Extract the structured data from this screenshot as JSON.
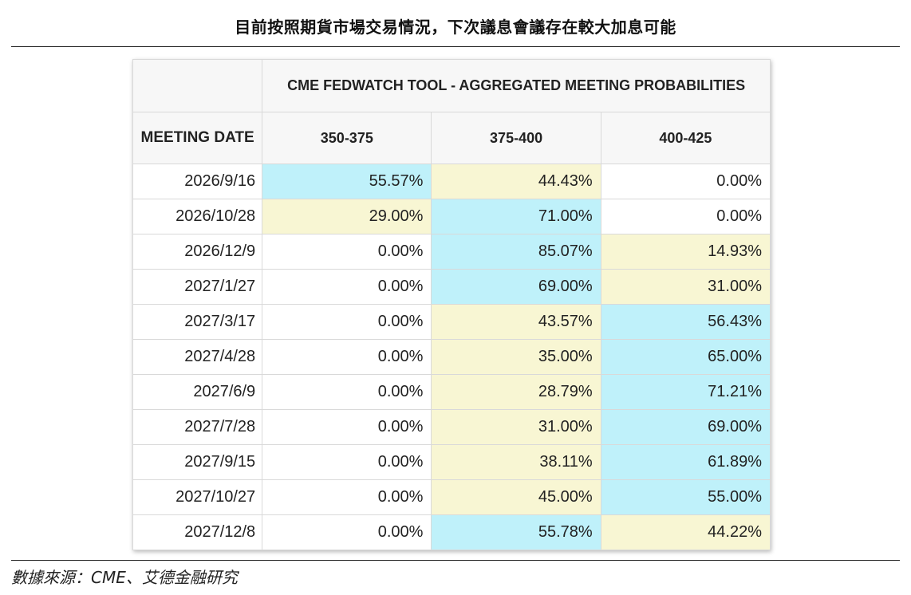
{
  "title": "目前按照期貨市場交易情況，下次議息會議存在較大加息可能",
  "table": {
    "banner": "CME FEDWATCH TOOL - AGGREGATED MEETING PROBABILITIES",
    "date_header": "MEETING DATE",
    "columns": [
      "350-375",
      "375-400",
      "400-425"
    ],
    "rows": [
      {
        "date": "2026/9/16",
        "values": [
          "55.57%",
          "44.43%",
          "0.00%"
        ],
        "highlight": [
          "blue",
          "yellow",
          ""
        ]
      },
      {
        "date": "2026/10/28",
        "values": [
          "29.00%",
          "71.00%",
          "0.00%"
        ],
        "highlight": [
          "yellow",
          "blue",
          ""
        ]
      },
      {
        "date": "2026/12/9",
        "values": [
          "0.00%",
          "85.07%",
          "14.93%"
        ],
        "highlight": [
          "",
          "blue",
          "yellow"
        ]
      },
      {
        "date": "2027/1/27",
        "values": [
          "0.00%",
          "69.00%",
          "31.00%"
        ],
        "highlight": [
          "",
          "blue",
          "yellow"
        ]
      },
      {
        "date": "2027/3/17",
        "values": [
          "0.00%",
          "43.57%",
          "56.43%"
        ],
        "highlight": [
          "",
          "yellow",
          "blue"
        ]
      },
      {
        "date": "2027/4/28",
        "values": [
          "0.00%",
          "35.00%",
          "65.00%"
        ],
        "highlight": [
          "",
          "yellow",
          "blue"
        ]
      },
      {
        "date": "2027/6/9",
        "values": [
          "0.00%",
          "28.79%",
          "71.21%"
        ],
        "highlight": [
          "",
          "yellow",
          "blue"
        ]
      },
      {
        "date": "2027/7/28",
        "values": [
          "0.00%",
          "31.00%",
          "69.00%"
        ],
        "highlight": [
          "",
          "yellow",
          "blue"
        ]
      },
      {
        "date": "2027/9/15",
        "values": [
          "0.00%",
          "38.11%",
          "61.89%"
        ],
        "highlight": [
          "",
          "yellow",
          "blue"
        ]
      },
      {
        "date": "2027/10/27",
        "values": [
          "0.00%",
          "45.00%",
          "55.00%"
        ],
        "highlight": [
          "",
          "yellow",
          "blue"
        ]
      },
      {
        "date": "2027/12/8",
        "values": [
          "0.00%",
          "55.78%",
          "44.22%"
        ],
        "highlight": [
          "",
          "blue",
          "yellow"
        ]
      }
    ]
  },
  "colors": {
    "highlight_blue": "#bff1fa",
    "highlight_yellow": "#f8f6d3",
    "header_bg": "#f7f7f7"
  },
  "source": "數據來源：CME、艾德金融研究"
}
